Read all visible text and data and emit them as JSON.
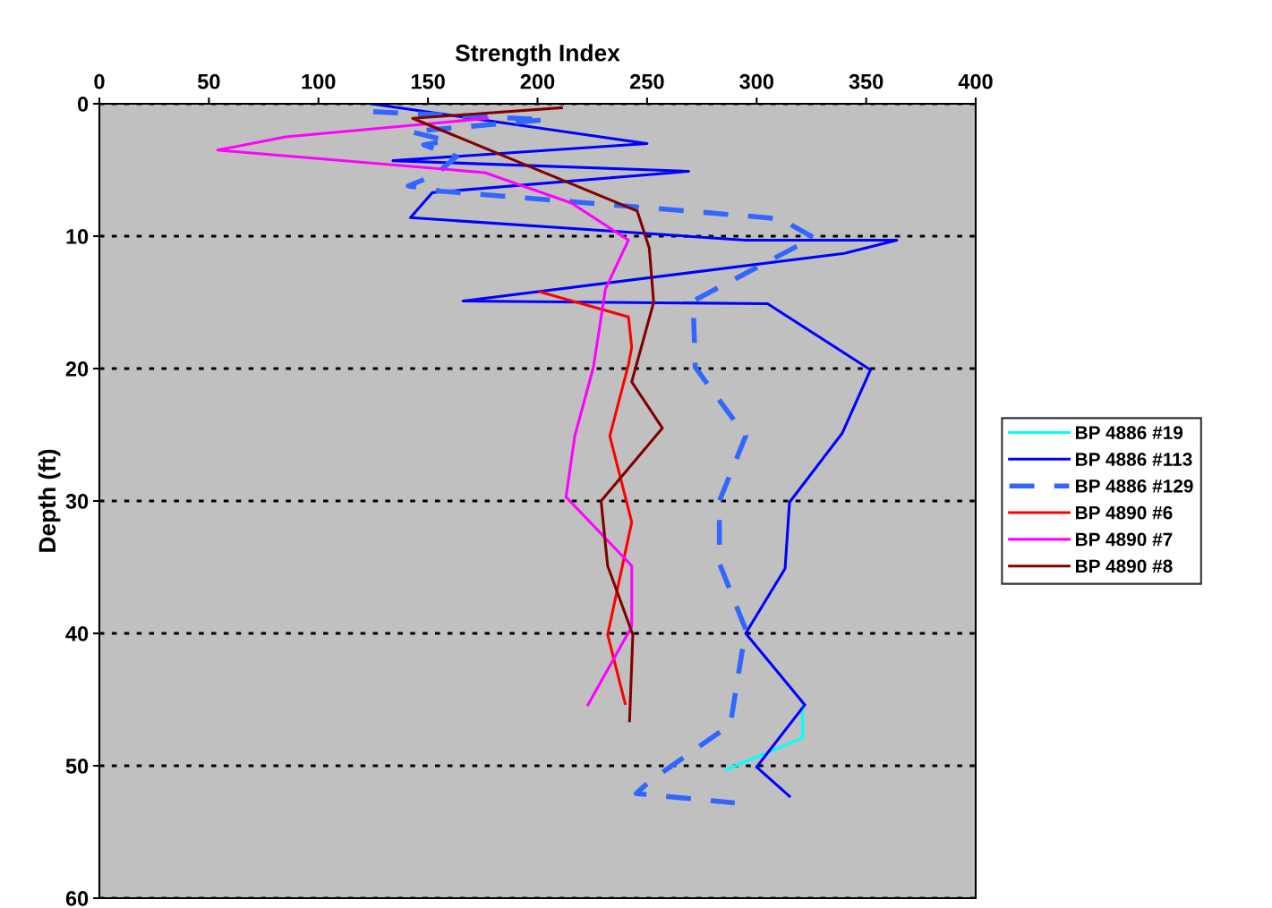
{
  "chart_data": {
    "type": "line",
    "xlabel": "Strength Index",
    "ylabel": "Depth (ft)",
    "xlim": [
      0,
      400
    ],
    "xticks": [
      0,
      50,
      100,
      150,
      200,
      250,
      300,
      350,
      400
    ],
    "ylim": [
      60,
      0
    ],
    "yticks": [
      0,
      10,
      20,
      30,
      40,
      50,
      60
    ],
    "grid": "y",
    "legend": "right",
    "series": [
      {
        "name": "BP 4886 #19",
        "color": "#00ffff",
        "line_style": "solid",
        "x": [
          321,
          321,
          286
        ],
        "values": [
          45.3,
          47.9,
          50.3
        ]
      },
      {
        "name": "BP 4886 #113",
        "color": "#0000ff",
        "line_style": "solid",
        "x": [
          124,
          250,
          134,
          269,
          152,
          142,
          295,
          364,
          340,
          166,
          305,
          352,
          339,
          315,
          313,
          295,
          322,
          300,
          315
        ],
        "values": [
          0,
          3.0,
          4.3,
          5.1,
          6.7,
          8.6,
          10.3,
          10.3,
          11.3,
          14.9,
          15.1,
          20.1,
          24.9,
          30.1,
          35.1,
          40.0,
          45.4,
          50.1,
          52.3
        ]
      },
      {
        "name": "BP 4886 #129",
        "color": "#3366ff",
        "line_style": "dashed",
        "x": [
          125,
          204,
          142,
          159,
          148,
          163,
          153,
          141,
          156,
          276,
          311,
          326,
          271,
          272,
          295,
          283,
          283,
          295,
          288,
          251,
          245,
          290
        ],
        "values": [
          0.6,
          1.2,
          2.1,
          2.8,
          3.1,
          4.0,
          5.4,
          6.2,
          6.6,
          8.2,
          8.7,
          10.1,
          14.9,
          19.9,
          25.1,
          30.0,
          34.7,
          39.7,
          46.9,
          51.2,
          52.1,
          52.8
        ]
      },
      {
        "name": "BP 4890 #6",
        "color": "#ff0000",
        "line_style": "solid",
        "x": [
          201,
          241.5,
          243,
          241.5,
          233,
          243,
          232,
          240
        ],
        "values": [
          14.2,
          16.1,
          18.4,
          19.7,
          25.1,
          31.6,
          40.1,
          45.3
        ]
      },
      {
        "name": "BP 4890 #7",
        "color": "#ff00ff",
        "line_style": "solid",
        "x": [
          177,
          85,
          54,
          176,
          215.5,
          241.5,
          231,
          225.5,
          217,
          213,
          243,
          243,
          223
        ],
        "values": [
          1.1,
          2.5,
          3.5,
          5.2,
          7.5,
          10.3,
          14.0,
          19.9,
          25.1,
          29.7,
          34.9,
          39.5,
          45.4
        ]
      },
      {
        "name": "BP 4890 #8",
        "color": "#800000",
        "line_style": "solid",
        "x": [
          211,
          143,
          245.5,
          251,
          253,
          243,
          257,
          229,
          232,
          243.5,
          242
        ],
        "values": [
          0.3,
          1.1,
          8.1,
          10.9,
          15.0,
          21.0,
          24.5,
          30.0,
          34.9,
          40.1,
          46.6
        ]
      }
    ]
  }
}
